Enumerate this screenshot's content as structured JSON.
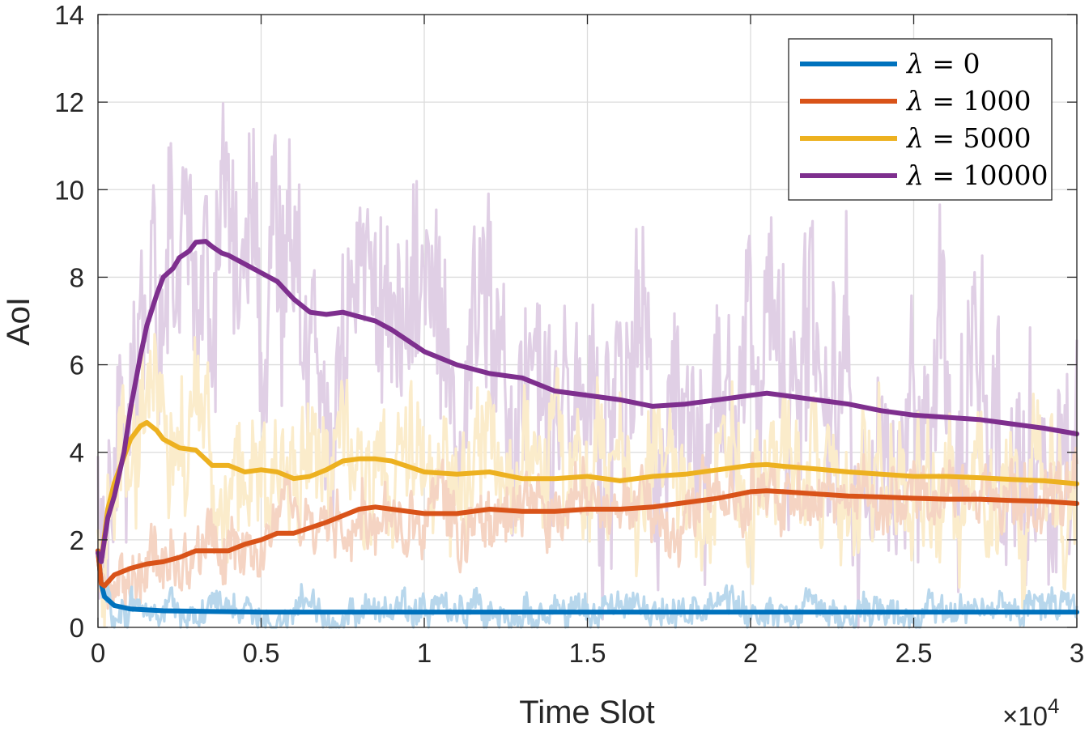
{
  "chart_data": {
    "type": "line",
    "title": "",
    "xlabel": "Time Slot",
    "ylabel": "AoI",
    "x_exponent_label": "×10",
    "x_exponent_power": "4",
    "xlim": [
      0,
      3
    ],
    "ylim": [
      0,
      14
    ],
    "xticks": [
      0,
      0.5,
      1,
      1.5,
      2,
      2.5,
      3
    ],
    "xtick_labels": [
      "0",
      "0.5",
      "1",
      "1.5",
      "2",
      "2.5",
      "3"
    ],
    "yticks": [
      0,
      2,
      4,
      6,
      8,
      10,
      12,
      14
    ],
    "ytick_labels": [
      "0",
      "2",
      "4",
      "6",
      "8",
      "10",
      "12",
      "14"
    ],
    "grid": true,
    "legend_position": "top-right",
    "series": [
      {
        "name": "λ = 0",
        "lambda_value": "0",
        "color": "#0072BD",
        "noise_color": "#b8d7ec",
        "noise_amp": 0.45,
        "x": [
          0,
          0.01,
          0.02,
          0.05,
          0.1,
          0.2,
          0.5,
          1,
          1.5,
          2,
          2.5,
          3
        ],
        "values": [
          1.75,
          1.0,
          0.7,
          0.5,
          0.42,
          0.38,
          0.35,
          0.35,
          0.35,
          0.35,
          0.35,
          0.35
        ]
      },
      {
        "name": "λ = 1000",
        "lambda_value": "1000",
        "color": "#D95319",
        "noise_color": "#f5d4c3",
        "noise_amp": 0.9,
        "x": [
          0,
          0.01,
          0.02,
          0.05,
          0.1,
          0.15,
          0.2,
          0.25,
          0.3,
          0.4,
          0.45,
          0.5,
          0.55,
          0.6,
          0.7,
          0.8,
          0.85,
          0.9,
          1.0,
          1.1,
          1.2,
          1.3,
          1.4,
          1.5,
          1.6,
          1.7,
          1.8,
          1.9,
          2.0,
          2.05,
          2.1,
          2.2,
          2.3,
          2.4,
          2.5,
          2.6,
          2.7,
          2.8,
          2.9,
          3.0
        ],
        "values": [
          1.75,
          1.0,
          0.95,
          1.2,
          1.35,
          1.45,
          1.5,
          1.6,
          1.75,
          1.75,
          1.9,
          2.0,
          2.15,
          2.15,
          2.4,
          2.7,
          2.75,
          2.7,
          2.6,
          2.6,
          2.7,
          2.65,
          2.65,
          2.7,
          2.7,
          2.75,
          2.85,
          2.95,
          3.1,
          3.12,
          3.1,
          3.05,
          3.0,
          2.98,
          2.95,
          2.93,
          2.93,
          2.9,
          2.88,
          2.83
        ]
      },
      {
        "name": "λ = 5000",
        "lambda_value": "5000",
        "color": "#EDB120",
        "noise_color": "#fbeccb",
        "noise_amp": 1.8,
        "x": [
          0,
          0.01,
          0.03,
          0.05,
          0.08,
          0.1,
          0.13,
          0.15,
          0.18,
          0.2,
          0.25,
          0.3,
          0.35,
          0.4,
          0.45,
          0.5,
          0.55,
          0.6,
          0.65,
          0.7,
          0.75,
          0.8,
          0.85,
          0.9,
          1.0,
          1.1,
          1.2,
          1.3,
          1.4,
          1.5,
          1.6,
          1.7,
          1.8,
          1.9,
          2.0,
          2.05,
          2.1,
          2.2,
          2.3,
          2.4,
          2.5,
          2.6,
          2.7,
          2.8,
          2.9,
          3.0
        ],
        "values": [
          1.7,
          1.5,
          2.7,
          3.3,
          3.9,
          4.3,
          4.6,
          4.68,
          4.5,
          4.3,
          4.1,
          4.05,
          3.7,
          3.7,
          3.55,
          3.6,
          3.55,
          3.4,
          3.45,
          3.6,
          3.8,
          3.85,
          3.85,
          3.8,
          3.55,
          3.5,
          3.55,
          3.4,
          3.4,
          3.45,
          3.35,
          3.45,
          3.5,
          3.6,
          3.7,
          3.72,
          3.68,
          3.62,
          3.55,
          3.5,
          3.45,
          3.45,
          3.42,
          3.38,
          3.35,
          3.28
        ]
      },
      {
        "name": "λ = 10000",
        "lambda_value": "10000",
        "color": "#7E2F8E",
        "noise_color": "#e0cfe5",
        "noise_amp": 3.2,
        "x": [
          0,
          0.01,
          0.03,
          0.05,
          0.08,
          0.1,
          0.13,
          0.15,
          0.18,
          0.2,
          0.23,
          0.25,
          0.28,
          0.3,
          0.33,
          0.35,
          0.38,
          0.4,
          0.45,
          0.5,
          0.55,
          0.6,
          0.65,
          0.7,
          0.75,
          0.8,
          0.85,
          0.9,
          1.0,
          1.1,
          1.2,
          1.3,
          1.4,
          1.5,
          1.6,
          1.7,
          1.8,
          1.9,
          2.0,
          2.05,
          2.1,
          2.2,
          2.3,
          2.4,
          2.5,
          2.6,
          2.7,
          2.8,
          2.9,
          3.0
        ],
        "values": [
          1.7,
          1.5,
          2.5,
          3.0,
          4.0,
          5.0,
          6.2,
          6.9,
          7.6,
          8.0,
          8.2,
          8.45,
          8.6,
          8.8,
          8.82,
          8.7,
          8.55,
          8.5,
          8.3,
          8.1,
          7.9,
          7.5,
          7.2,
          7.15,
          7.2,
          7.1,
          7.0,
          6.8,
          6.3,
          6.0,
          5.8,
          5.7,
          5.4,
          5.3,
          5.2,
          5.05,
          5.1,
          5.2,
          5.3,
          5.35,
          5.3,
          5.2,
          5.1,
          4.95,
          4.85,
          4.8,
          4.75,
          4.65,
          4.55,
          4.42
        ]
      }
    ]
  }
}
